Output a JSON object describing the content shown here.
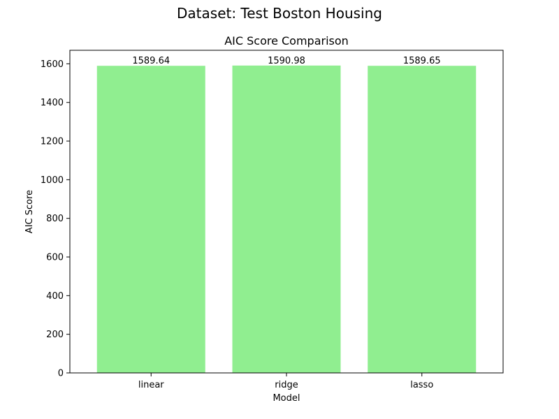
{
  "suptitle": "Dataset: Test Boston Housing",
  "chart_data": {
    "type": "bar",
    "title": "AIC Score Comparison",
    "xlabel": "Model",
    "ylabel": "AIC Score",
    "categories": [
      "linear",
      "ridge",
      "lasso"
    ],
    "values": [
      1589.64,
      1590.98,
      1589.65
    ],
    "data_labels": [
      "1589.64",
      "1590.98",
      "1589.65"
    ],
    "ylim": [
      0,
      1670
    ],
    "yticks": [
      0,
      200,
      400,
      600,
      800,
      1000,
      1200,
      1400,
      1600
    ],
    "bar_color": "#90ee90",
    "grid": false
  }
}
